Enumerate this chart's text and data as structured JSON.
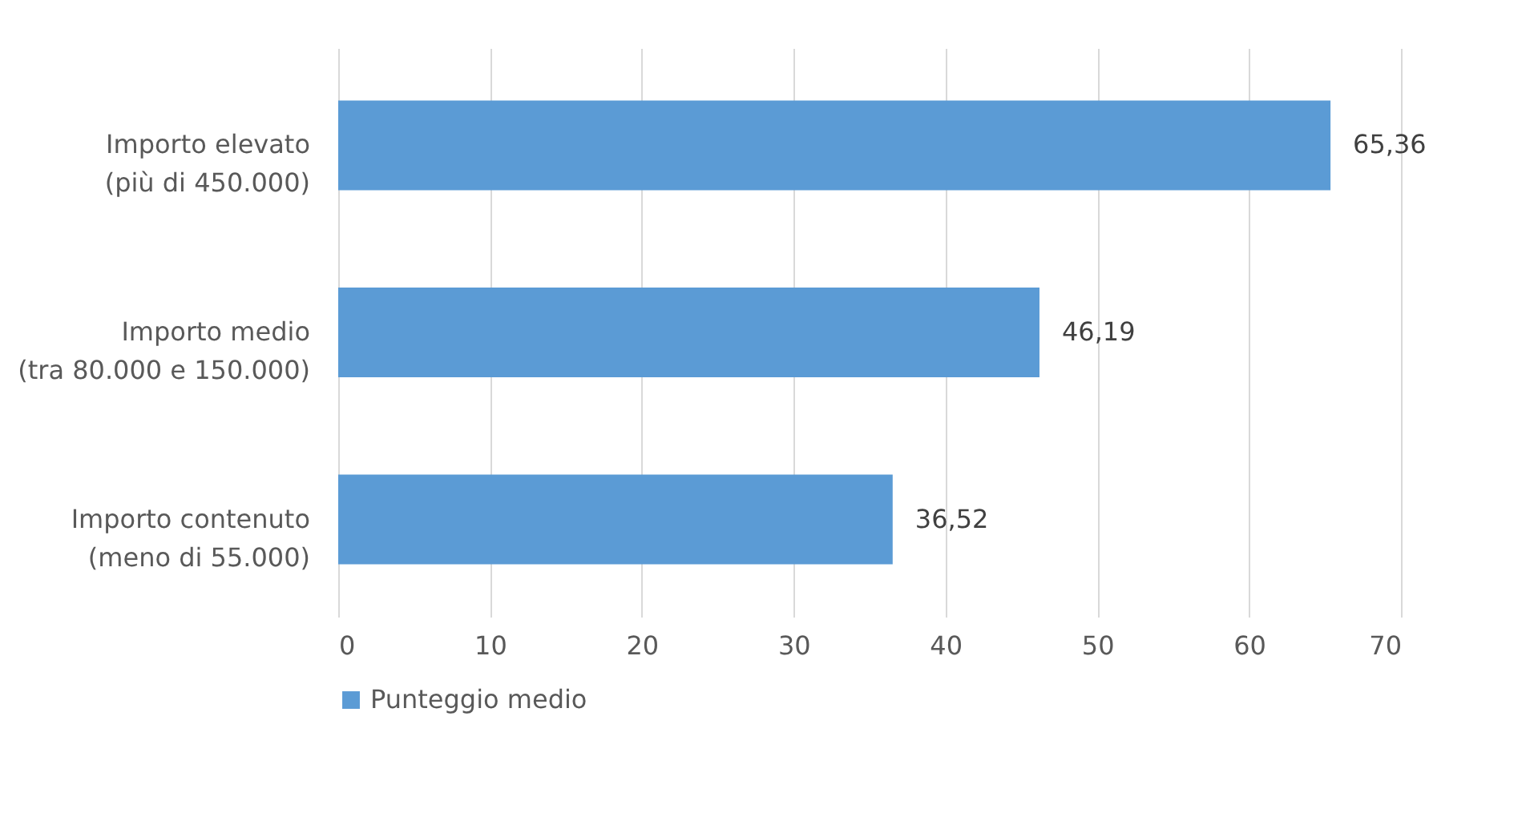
{
  "chart_data": {
    "type": "bar",
    "orientation": "horizontal",
    "categories": [
      "Importo elevato\n(più di 450.000)",
      "Importo medio\n(tra 80.000 e 150.000)",
      "Importo contenuto\n(meno di 55.000)"
    ],
    "series": [
      {
        "name": "Punteggio medio",
        "color": "#5b9bd5",
        "values": [
          65.36,
          46.19,
          36.52
        ],
        "value_labels": [
          "65,36",
          "46,19",
          "36,52"
        ]
      }
    ],
    "xlim": [
      0,
      70
    ],
    "xticks": [
      0,
      10,
      20,
      30,
      40,
      50,
      60,
      70
    ],
    "grid": "x",
    "legend": "bottom"
  }
}
